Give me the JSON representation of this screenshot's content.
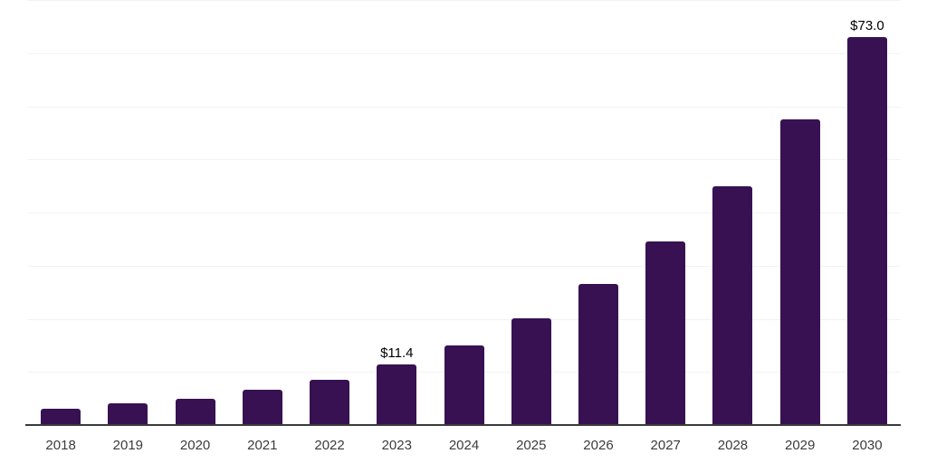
{
  "chart_data": {
    "type": "bar",
    "title": "",
    "xlabel": "",
    "ylabel": "",
    "categories": [
      "2018",
      "2019",
      "2020",
      "2021",
      "2022",
      "2023",
      "2024",
      "2025",
      "2026",
      "2027",
      "2028",
      "2029",
      "2030"
    ],
    "values": [
      3.1,
      4.1,
      4.9,
      6.6,
      8.5,
      11.4,
      15.0,
      20.1,
      26.5,
      34.6,
      44.9,
      57.5,
      73.0
    ],
    "bar_labels": [
      "",
      "",
      "",
      "",
      "",
      "$11.4",
      "",
      "",
      "",
      "",
      "",
      "",
      "$73.0"
    ],
    "ylim": [
      0,
      80
    ],
    "gridline_step": 10,
    "grid": "horizontal",
    "legend": "none",
    "colors": {
      "bar": "#371151",
      "gridline": "#f2f2f2",
      "axis_line": "#3a3a3a",
      "tick_label": "#3c3c3c",
      "data_label": "#000000",
      "background": "#ffffff"
    }
  }
}
